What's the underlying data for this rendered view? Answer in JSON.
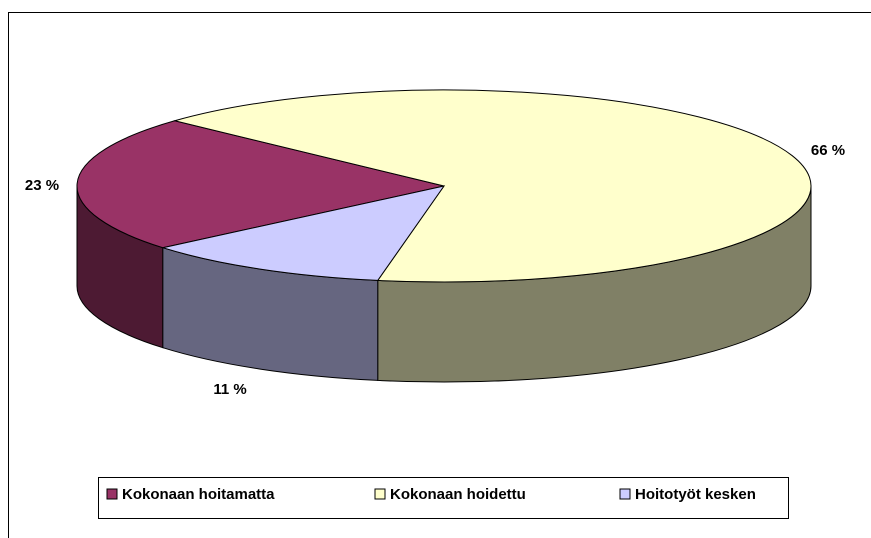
{
  "chart_data": {
    "type": "pie",
    "categories": [
      "Kokonaan hoitamatta",
      "Kokonaan hoidettu",
      "Hoitotyöt kesken"
    ],
    "values": [
      23,
      66,
      11
    ],
    "value_labels": [
      "23 %",
      "66 %",
      "11 %"
    ],
    "colors": [
      "#993366",
      "#FFFFCC",
      "#CCCCFF"
    ],
    "side_colors": [
      "#4D1A33",
      "#808066",
      "#666680"
    ],
    "legend": "bottom"
  }
}
